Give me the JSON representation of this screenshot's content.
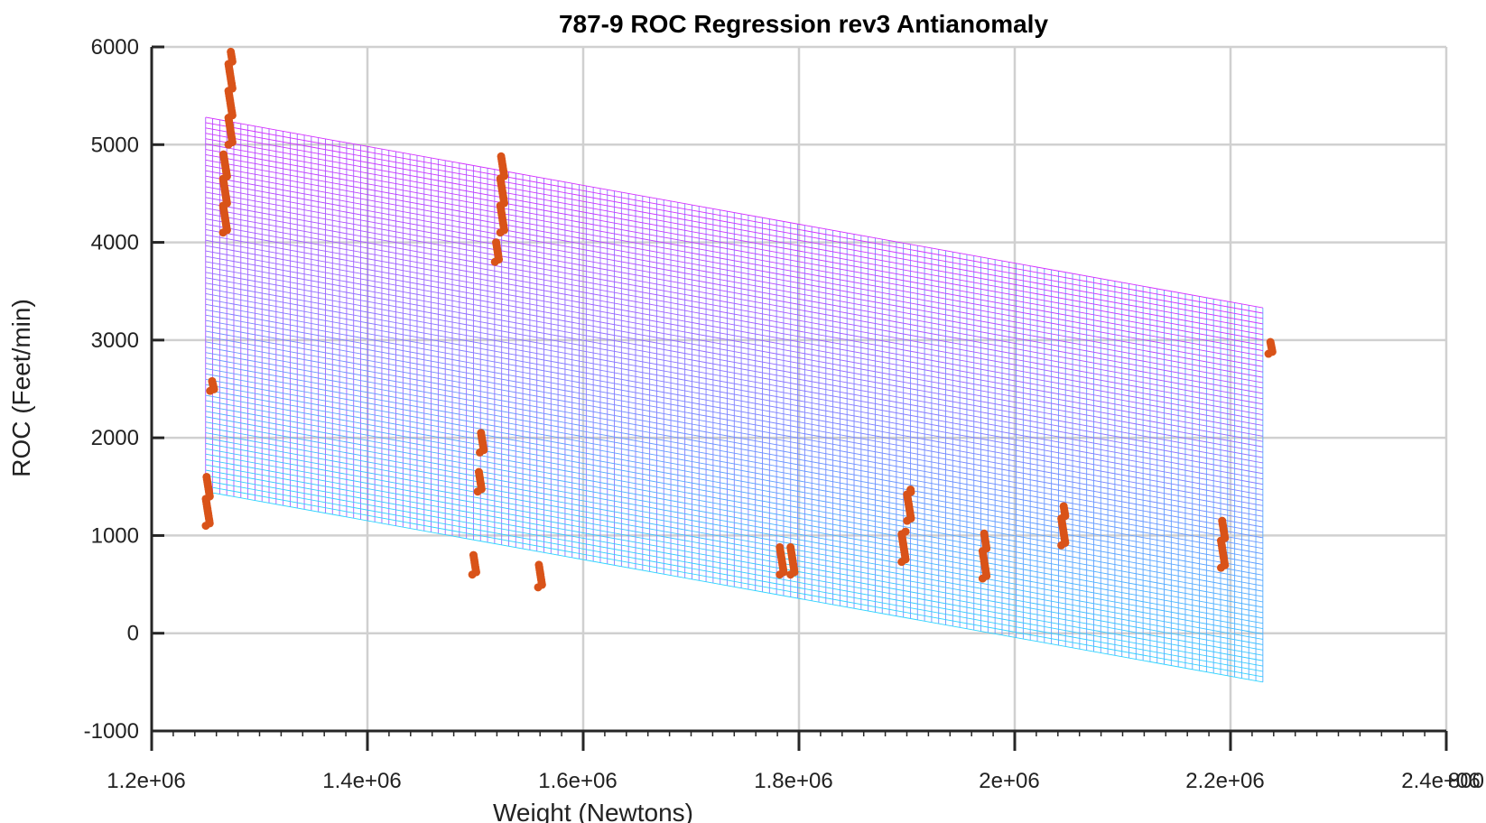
{
  "chart_data": {
    "type": "scatter",
    "title": "787-9 ROC Regression rev3 Antianomaly",
    "xlabel": "Weight (Newtons)",
    "ylabel": "ROC (Feet/min)",
    "xlim": [
      1200000,
      2400000
    ],
    "ylim": [
      -1000,
      6000
    ],
    "x_ticks": [
      1200000,
      1400000,
      1600000,
      1800000,
      2000000,
      2200000,
      2400000
    ],
    "x_tick_labels": [
      "1.2e+06",
      "1.4e+06",
      "1.6e+06",
      "1.8e+06",
      "2e+06",
      "2.2e+06",
      "2.4e+06"
    ],
    "x_tick_overlap_label": "800",
    "y_ticks": [
      -1000,
      0,
      1000,
      2000,
      3000,
      4000,
      5000,
      6000
    ],
    "y_tick_labels": [
      "-1000",
      "0",
      "1000",
      "2000",
      "3000",
      "4000",
      "5000",
      "6000"
    ],
    "grid": true,
    "surface": {
      "type": "mesh",
      "x_range": [
        1250000,
        2230000
      ],
      "top_edge_y": [
        5280,
        3330
      ],
      "bottom_edge_y": [
        1450,
        -500
      ],
      "colormap": [
        "#00ffff",
        "#ff00ff"
      ]
    },
    "series": [
      {
        "color": "#d95319",
        "clusters": [
          {
            "x": 1252000,
            "y_range": [
              1100,
              1600
            ]
          },
          {
            "x": 1256000,
            "y_range": [
              2480,
              2580
            ]
          },
          {
            "x": 1268000,
            "y_range": [
              4100,
              4900
            ]
          },
          {
            "x": 1273000,
            "y_range": [
              5000,
              5950
            ]
          },
          {
            "x": 1499000,
            "y_range": [
              600,
              800
            ]
          },
          {
            "x": 1504000,
            "y_range": [
              1450,
              1650
            ]
          },
          {
            "x": 1506000,
            "y_range": [
              1850,
              2050
            ]
          },
          {
            "x": 1520000,
            "y_range": [
              3800,
              4000
            ]
          },
          {
            "x": 1525000,
            "y_range": [
              4100,
              4880
            ]
          },
          {
            "x": 1560000,
            "y_range": [
              470,
              700
            ]
          },
          {
            "x": 1784000,
            "y_range": [
              600,
              880
            ]
          },
          {
            "x": 1794000,
            "y_range": [
              600,
              880
            ]
          },
          {
            "x": 1897000,
            "y_range": [
              730,
              1040
            ]
          },
          {
            "x": 1902000,
            "y_range": [
              1150,
              1470
            ]
          },
          {
            "x": 1972000,
            "y_range": [
              560,
              1020
            ]
          },
          {
            "x": 2045000,
            "y_range": [
              900,
              1300
            ]
          },
          {
            "x": 2193000,
            "y_range": [
              670,
              1150
            ]
          },
          {
            "x": 2237000,
            "y_range": [
              2860,
              2980
            ]
          }
        ]
      }
    ]
  }
}
